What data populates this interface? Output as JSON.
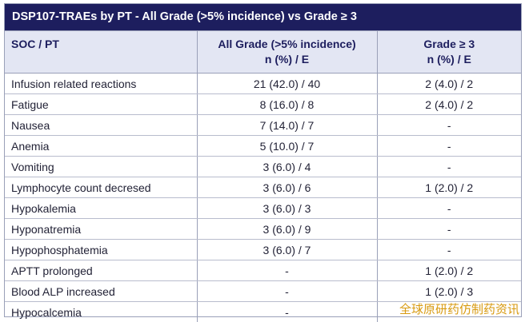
{
  "title": "DSP107-TRAEs by PT - All Grade (>5% incidence) vs Grade ≥ 3",
  "headers": {
    "col1": "SOC / PT",
    "col2_line1": "All Grade (>5% incidence)",
    "col2_line2": "n (%) / E",
    "col3_line1": "Grade ≥ 3",
    "col3_line2": "n (%) / E"
  },
  "rows": [
    {
      "pt": "Infusion related reactions",
      "all_grade": "21 (42.0) / 40",
      "grade3": "2 (4.0) / 2"
    },
    {
      "pt": "Fatigue",
      "all_grade": "8 (16.0) / 8",
      "grade3": "2 (4.0) / 2"
    },
    {
      "pt": "Nausea",
      "all_grade": "7 (14.0) / 7",
      "grade3": "-"
    },
    {
      "pt": "Anemia",
      "all_grade": "5 (10.0) / 7",
      "grade3": "-"
    },
    {
      "pt": "Vomiting",
      "all_grade": "3 (6.0) / 4",
      "grade3": "-"
    },
    {
      "pt": "Lymphocyte count decresed",
      "all_grade": "3 (6.0) / 6",
      "grade3": "1 (2.0) / 2"
    },
    {
      "pt": "Hypokalemia",
      "all_grade": "3 (6.0) / 3",
      "grade3": "-"
    },
    {
      "pt": "Hyponatremia",
      "all_grade": "3 (6.0) / 9",
      "grade3": "-"
    },
    {
      "pt": "Hypophosphatemia",
      "all_grade": "3 (6.0) / 7",
      "grade3": "-"
    },
    {
      "pt": "APTT prolonged",
      "all_grade": "-",
      "grade3": "1 (2.0) / 2"
    },
    {
      "pt": "Blood ALP increased",
      "all_grade": "-",
      "grade3": "1 (2.0) / 3"
    },
    {
      "pt": "Hypocalcemia",
      "all_grade": "-",
      "grade3": ""
    }
  ],
  "watermark": "全球原研药仿制药资讯",
  "colors": {
    "title_bg": "#1d1e5e",
    "header_bg": "#e3e6f3",
    "header_text": "#1d1e5e",
    "watermark": "#d89a10"
  }
}
